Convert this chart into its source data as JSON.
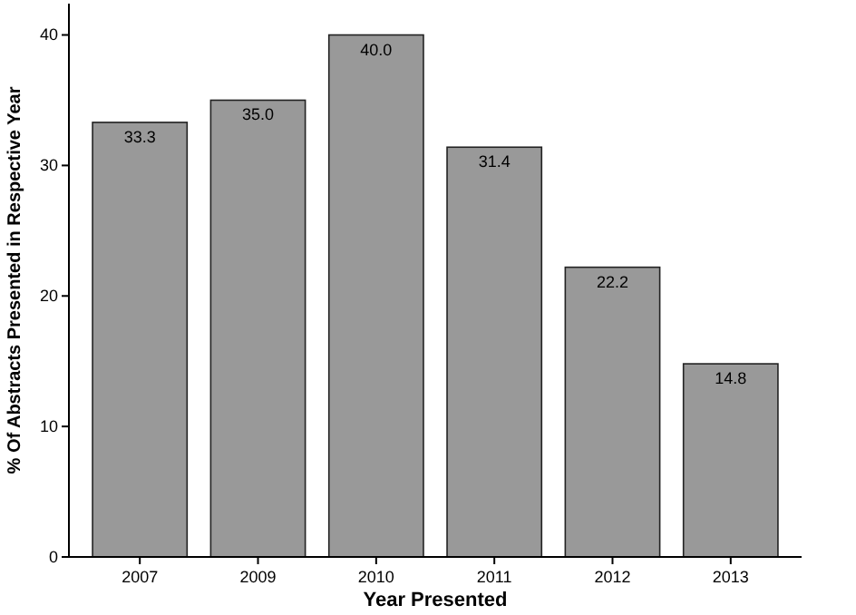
{
  "chart_data": {
    "type": "bar",
    "xlabel": "Year Presented",
    "ylabel": "% Of Abstracts Presented in Respective Year",
    "categories": [
      "2007",
      "2009",
      "2010",
      "2011",
      "2012",
      "2013"
    ],
    "values": [
      33.3,
      35.0,
      40.0,
      31.4,
      22.2,
      14.8
    ],
    "value_labels": [
      "33.3",
      "35.0",
      "40.0",
      "31.4",
      "22.2",
      "14.8"
    ],
    "color": "#999999",
    "ylim": [
      0,
      42.4
    ],
    "yticks": [
      0,
      10,
      20,
      30,
      40
    ],
    "grid": false
  }
}
